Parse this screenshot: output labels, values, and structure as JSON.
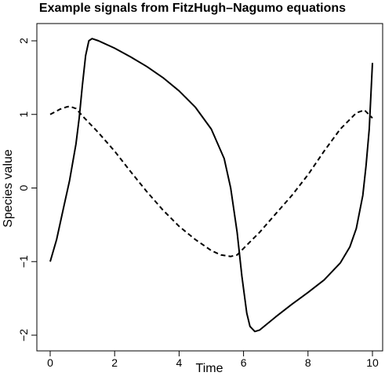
{
  "chart_data": {
    "type": "line",
    "title": "Example signals from FitzHugh–Nagumo equations",
    "xlabel": "Time",
    "ylabel": "Species value",
    "xlim": [
      0,
      10
    ],
    "ylim": [
      -2,
      2
    ],
    "x_ticks": [
      0,
      2,
      4,
      6,
      8,
      10
    ],
    "y_ticks": [
      -2,
      -1,
      0,
      1,
      2
    ],
    "x_tick_labels": [
      "0",
      "2",
      "4",
      "6",
      "8",
      "10"
    ],
    "y_tick_labels": [
      "−2",
      "−1",
      "0",
      "1",
      "2"
    ],
    "grid": false,
    "legend": "none",
    "series": [
      {
        "line_style": "solid",
        "color": "#000000",
        "points": [
          [
            0.0,
            -1.0
          ],
          [
            0.2,
            -0.7
          ],
          [
            0.4,
            -0.3
          ],
          [
            0.6,
            0.1
          ],
          [
            0.8,
            0.6
          ],
          [
            0.9,
            0.95
          ],
          [
            1.0,
            1.4
          ],
          [
            1.1,
            1.8
          ],
          [
            1.2,
            2.0
          ],
          [
            1.3,
            2.03
          ],
          [
            1.5,
            2.0
          ],
          [
            2.0,
            1.9
          ],
          [
            2.5,
            1.78
          ],
          [
            3.0,
            1.65
          ],
          [
            3.5,
            1.5
          ],
          [
            4.0,
            1.32
          ],
          [
            4.5,
            1.1
          ],
          [
            5.0,
            0.8
          ],
          [
            5.4,
            0.4
          ],
          [
            5.6,
            0.0
          ],
          [
            5.8,
            -0.6
          ],
          [
            5.95,
            -1.2
          ],
          [
            6.1,
            -1.7
          ],
          [
            6.2,
            -1.88
          ],
          [
            6.35,
            -1.95
          ],
          [
            6.5,
            -1.93
          ],
          [
            7.0,
            -1.75
          ],
          [
            7.5,
            -1.58
          ],
          [
            8.0,
            -1.42
          ],
          [
            8.5,
            -1.25
          ],
          [
            9.0,
            -1.02
          ],
          [
            9.3,
            -0.8
          ],
          [
            9.5,
            -0.55
          ],
          [
            9.7,
            -0.1
          ],
          [
            9.8,
            0.3
          ],
          [
            9.9,
            0.8
          ],
          [
            10.0,
            1.7
          ]
        ]
      },
      {
        "line_style": "dashed",
        "color": "#000000",
        "points": [
          [
            0.0,
            1.0
          ],
          [
            0.3,
            1.07
          ],
          [
            0.5,
            1.1
          ],
          [
            0.6,
            1.11
          ],
          [
            0.8,
            1.08
          ],
          [
            1.0,
            0.98
          ],
          [
            1.5,
            0.75
          ],
          [
            2.0,
            0.5
          ],
          [
            2.5,
            0.22
          ],
          [
            3.0,
            -0.05
          ],
          [
            3.5,
            -0.3
          ],
          [
            4.0,
            -0.52
          ],
          [
            4.5,
            -0.7
          ],
          [
            5.0,
            -0.85
          ],
          [
            5.3,
            -0.91
          ],
          [
            5.6,
            -0.93
          ],
          [
            5.8,
            -0.91
          ],
          [
            6.0,
            -0.82
          ],
          [
            6.5,
            -0.6
          ],
          [
            7.0,
            -0.35
          ],
          [
            7.5,
            -0.1
          ],
          [
            8.0,
            0.18
          ],
          [
            8.5,
            0.5
          ],
          [
            9.0,
            0.8
          ],
          [
            9.5,
            1.02
          ],
          [
            9.75,
            1.06
          ],
          [
            10.0,
            0.95
          ]
        ]
      }
    ]
  }
}
